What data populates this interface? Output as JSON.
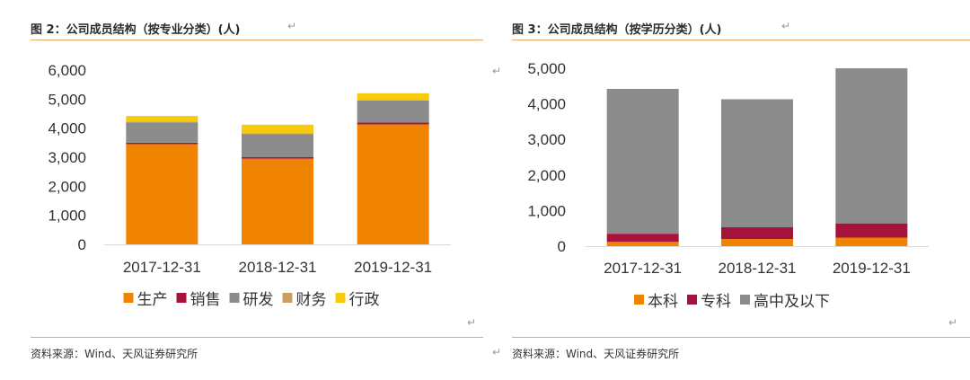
{
  "left": {
    "title": "图 2：公司成员结构（按专业分类）(人)",
    "source": "资料来源：Wind、天风证券研究所"
  },
  "right": {
    "title": "图 3：公司成员结构（按学历分类）(人)",
    "source": "资料来源：Wind、天风证券研究所"
  },
  "para_mark": "↵",
  "chart_data": [
    {
      "type": "bar",
      "stacked": true,
      "categories": [
        "2017-12-31",
        "2018-12-31",
        "2019-12-31"
      ],
      "series": [
        {
          "name": "生产",
          "color": "#F08300",
          "values": [
            3450,
            2950,
            4130
          ]
        },
        {
          "name": "销售",
          "color": "#A6133C",
          "values": [
            50,
            50,
            60
          ]
        },
        {
          "name": "研发",
          "color": "#8C8C8C",
          "values": [
            700,
            800,
            760
          ]
        },
        {
          "name": "财务",
          "color": "#C9A063",
          "values": [
            20,
            20,
            20
          ]
        },
        {
          "name": "行政",
          "color": "#F7CB0C",
          "values": [
            200,
            300,
            230
          ]
        }
      ],
      "ylim": [
        0,
        6000
      ],
      "yticks": [
        "0",
        "1,000",
        "2,000",
        "3,000",
        "4,000",
        "5,000",
        "6,000"
      ],
      "legend_position": "bottom",
      "grid": false
    },
    {
      "type": "bar",
      "stacked": true,
      "categories": [
        "2017-12-31",
        "2018-12-31",
        "2019-12-31"
      ],
      "series": [
        {
          "name": "本科",
          "color": "#F08300",
          "values": [
            120,
            200,
            240
          ]
        },
        {
          "name": "专科",
          "color": "#A6133C",
          "values": [
            230,
            330,
            400
          ]
        },
        {
          "name": "高中及以下",
          "color": "#8C8C8C",
          "values": [
            4070,
            3600,
            4360
          ]
        }
      ],
      "ylim": [
        0,
        5000
      ],
      "yticks": [
        "0",
        "1,000",
        "2,000",
        "3,000",
        "4,000",
        "5,000"
      ],
      "legend_position": "bottom",
      "grid": false
    }
  ]
}
